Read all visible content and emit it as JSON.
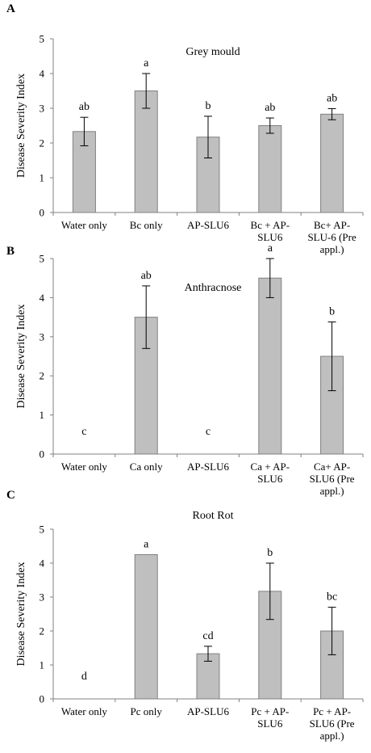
{
  "chart_data": [
    {
      "type": "bar",
      "panel": "A",
      "title": "Grey mould",
      "ylabel": "Disease Severity Index",
      "xlabel": "",
      "ylim": [
        0,
        5
      ],
      "yticks": [
        "0",
        "1",
        "2",
        "3",
        "4",
        "5"
      ],
      "categories": [
        [
          "Water only"
        ],
        [
          "Bc only"
        ],
        [
          "AP-SLU6"
        ],
        [
          "Bc + AP-",
          "SLU6"
        ],
        [
          "Bc+ AP-",
          "SLU-6 (Pre",
          "appl.)"
        ]
      ],
      "values": [
        2.33,
        3.5,
        2.17,
        2.5,
        2.83
      ],
      "errors": [
        0.41,
        0.5,
        0.6,
        0.22,
        0.16
      ],
      "letters": [
        "ab",
        "a",
        "b",
        "ab",
        "ab"
      ],
      "grid": false,
      "bar_color": "#bfbfbf"
    },
    {
      "type": "bar",
      "panel": "B",
      "title": "Anthracnose",
      "ylabel": "Disease Severity Index",
      "xlabel": "",
      "ylim": [
        0,
        5
      ],
      "yticks": [
        "0",
        "1",
        "2",
        "3",
        "4",
        "5"
      ],
      "categories": [
        [
          "Water only"
        ],
        [
          "Ca only"
        ],
        [
          "AP-SLU6"
        ],
        [
          "Ca + AP-",
          "SLU6"
        ],
        [
          "Ca+ AP-",
          "SLU6 (Pre",
          "appl.)"
        ]
      ],
      "values": [
        0,
        3.5,
        0,
        4.5,
        2.5
      ],
      "errors": [
        0,
        0.8,
        0,
        0.5,
        0.88
      ],
      "letters": [
        "c",
        "ab",
        "c",
        "a",
        "b"
      ],
      "grid": false,
      "bar_color": "#bfbfbf"
    },
    {
      "type": "bar",
      "panel": "C",
      "title": "Root Rot",
      "ylabel": "Disease Severity Index",
      "xlabel": "",
      "ylim": [
        0,
        5
      ],
      "yticks": [
        "0",
        "1",
        "2",
        "3",
        "4",
        "5"
      ],
      "categories": [
        [
          "Water only"
        ],
        [
          "Pc only"
        ],
        [
          "AP-SLU6"
        ],
        [
          "Pc + AP-",
          "SLU6"
        ],
        [
          "Pc + AP-",
          "SLU6 (Pre",
          "appl.)"
        ]
      ],
      "values": [
        0,
        4.25,
        1.33,
        3.17,
        2.0
      ],
      "errors": [
        0,
        0,
        0.22,
        0.83,
        0.7
      ],
      "letters": [
        "d",
        "a",
        "cd",
        "b",
        "bc"
      ],
      "grid": false,
      "bar_color": "#bfbfbf"
    }
  ]
}
